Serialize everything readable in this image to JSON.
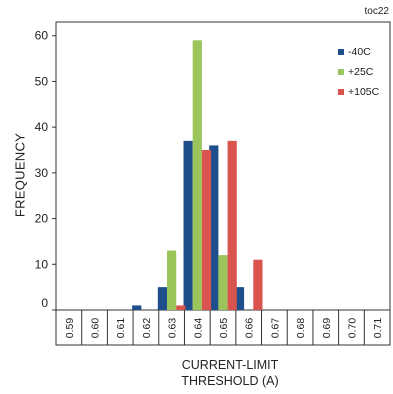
{
  "corner_tag": "toc22",
  "chart_data": {
    "type": "bar",
    "title": "",
    "xlabel_lines": [
      "CURRENT-LIMIT",
      "THRESHOLD (A)"
    ],
    "ylabel": "FREQUENCY",
    "categories": [
      "0.59",
      "0.60",
      "0.61",
      "0.62",
      "0.63",
      "0.64",
      "0.65",
      "0.66",
      "0.67",
      "0.68",
      "0.69",
      "0.70",
      "0.71"
    ],
    "yticks": [
      0,
      10,
      20,
      30,
      40,
      50,
      60
    ],
    "ylim": [
      0,
      63
    ],
    "grid": false,
    "legend_position": "top-right",
    "series": [
      {
        "name": "-40C",
        "color": "#1f4e8c",
        "values": [
          0,
          0,
          0,
          1,
          5,
          37,
          36,
          5,
          0,
          0,
          0,
          0,
          0
        ]
      },
      {
        "name": "+25C",
        "color": "#9bc55b",
        "values": [
          0,
          0,
          0,
          0,
          13,
          59,
          12,
          0,
          0,
          0,
          0,
          0,
          0
        ]
      },
      {
        "name": "+105C",
        "color": "#d9534f",
        "values": [
          0,
          0,
          0,
          0,
          1,
          35,
          37,
          11,
          0,
          0,
          0,
          0,
          0
        ]
      }
    ]
  }
}
